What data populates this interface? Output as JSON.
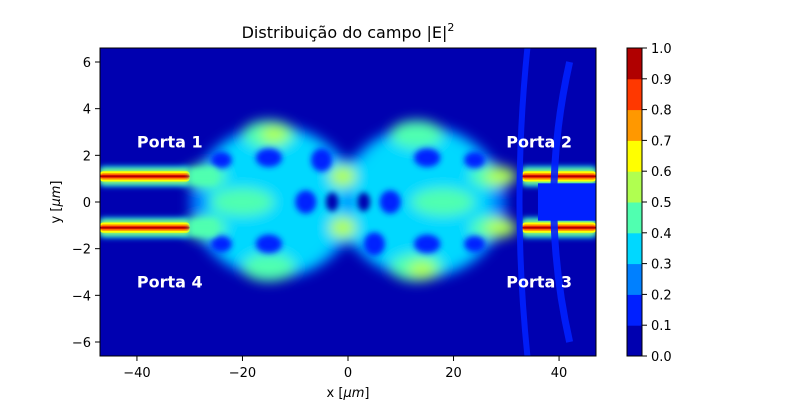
{
  "chart_data": {
    "type": "heatmap",
    "title": "Distribuição do campo |E|",
    "title_superscript": "2",
    "xlabel": "x [",
    "xlabel_unit": "μm",
    "xlabel_close": "]",
    "ylabel": "y [",
    "ylabel_unit": "μm",
    "ylabel_close": "]",
    "xlim": [
      -47,
      47
    ],
    "ylim": [
      -6.6,
      6.6
    ],
    "x_ticks": [
      -40,
      -20,
      0,
      20,
      40
    ],
    "x_tick_labels": [
      "−40",
      "−20",
      "0",
      "20",
      "40"
    ],
    "y_ticks": [
      -6,
      -4,
      -2,
      0,
      2,
      4,
      6
    ],
    "y_tick_labels": [
      "−6",
      "−4",
      "−2",
      "0",
      "2",
      "4",
      "6"
    ],
    "colorbar": {
      "min": 0.0,
      "max": 1.0,
      "levels": [
        0.0,
        0.1,
        0.2,
        0.3,
        0.4,
        0.5,
        0.6,
        0.7,
        0.8,
        0.9,
        1.0
      ],
      "tick_labels": [
        "0.0",
        "0.1",
        "0.2",
        "0.3",
        "0.4",
        "0.5",
        "0.6",
        "0.7",
        "0.8",
        "0.9",
        "1.0"
      ],
      "colors": [
        "#0000b0",
        "#0020ff",
        "#0080ff",
        "#00d8ff",
        "#50ffb0",
        "#b0ff50",
        "#ffff00",
        "#ff9800",
        "#ff3800",
        "#b00000"
      ]
    },
    "annotations": [
      {
        "text": "Porta 1",
        "x": -40,
        "y": 2.6
      },
      {
        "text": "Porta 2",
        "x": 30,
        "y": 2.6
      },
      {
        "text": "Porta 3",
        "x": 30,
        "y": -3.4
      },
      {
        "text": "Porta 4",
        "x": -40,
        "y": -3.4
      }
    ],
    "colormap": "jet",
    "grid": false
  }
}
